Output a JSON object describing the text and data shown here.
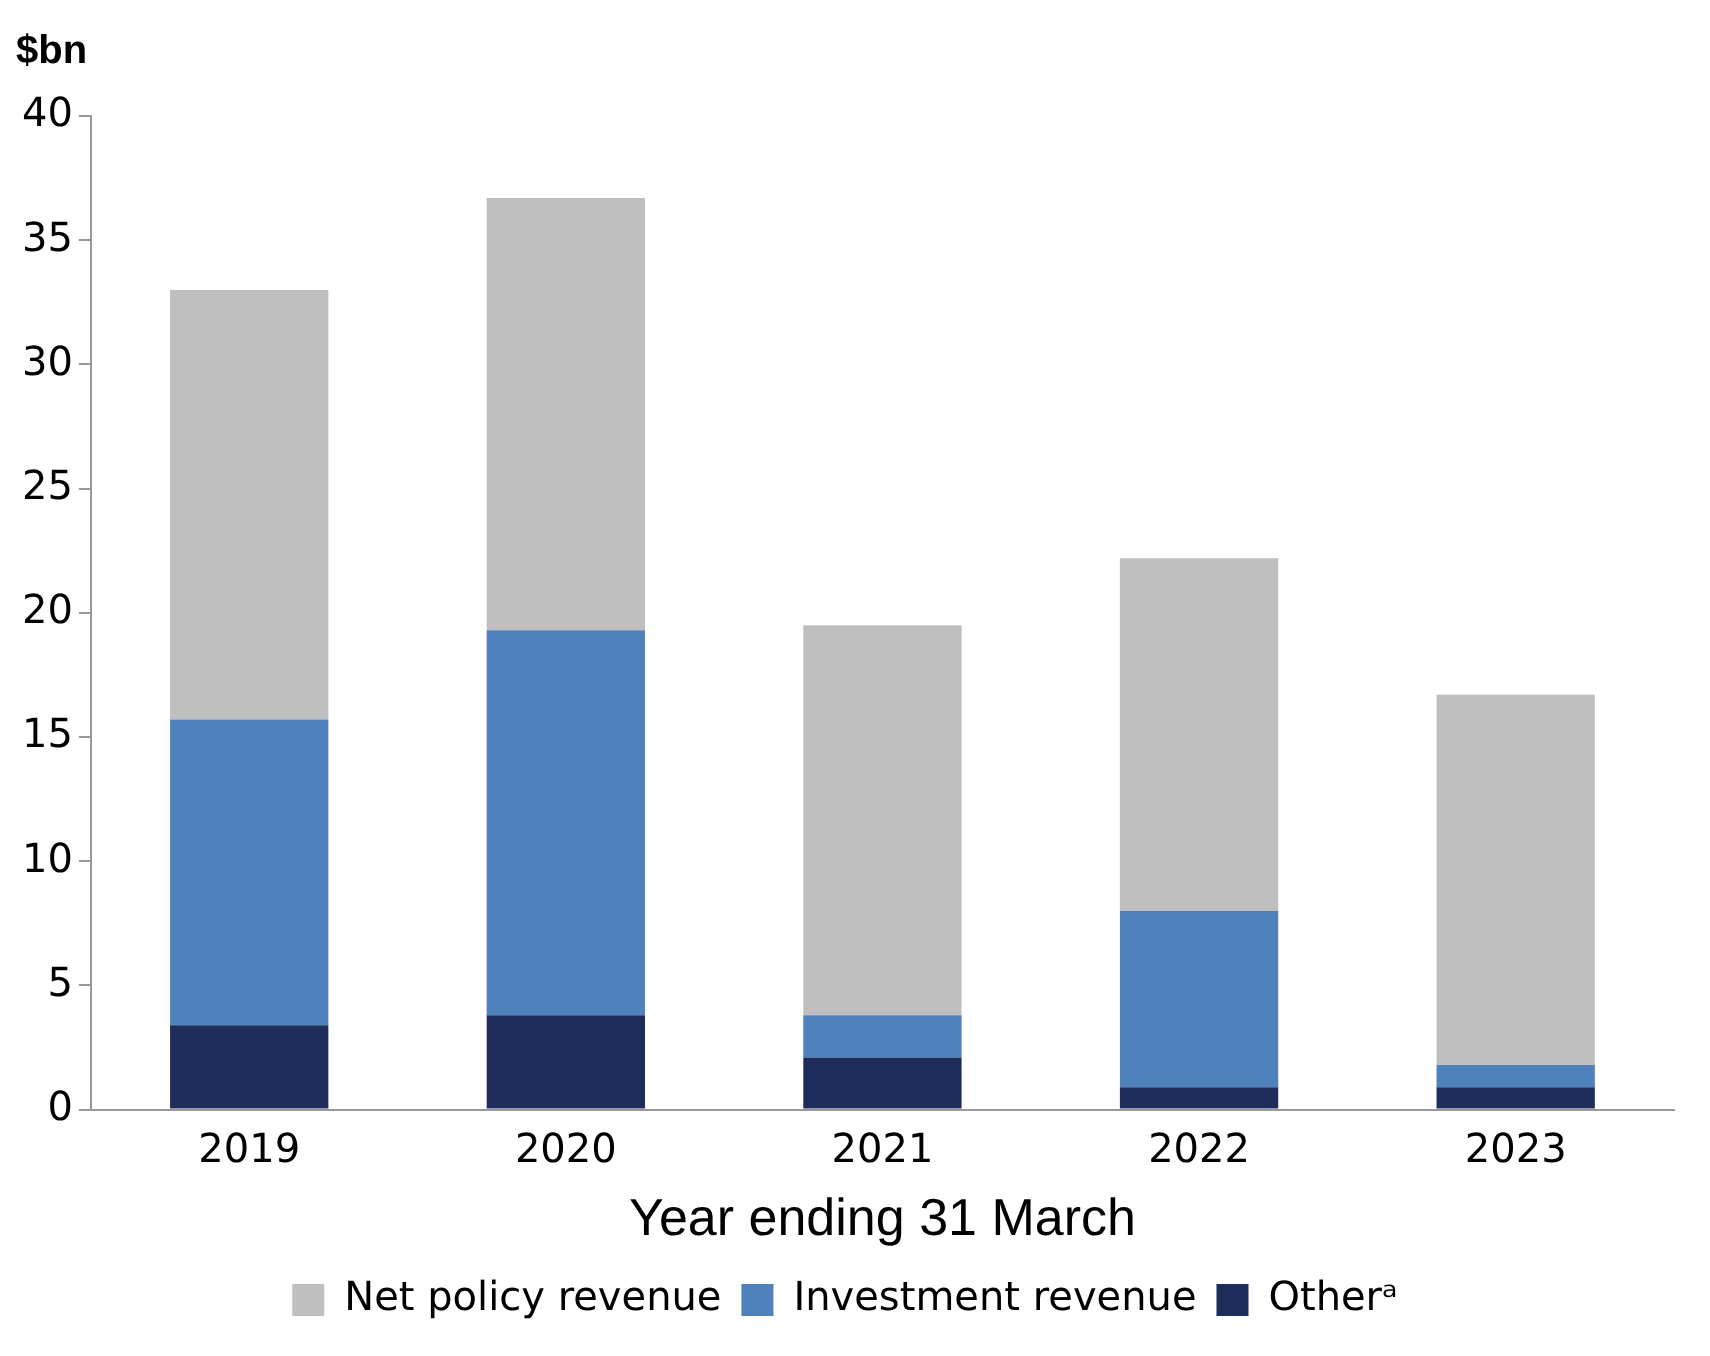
{
  "chart_data": {
    "type": "bar",
    "stacked": true,
    "ylabel": "$bn",
    "xlabel": "Year ending 31 March",
    "categories": [
      "2019",
      "2020",
      "2021",
      "2022",
      "2023"
    ],
    "series": [
      {
        "name": "Otherᵃ",
        "color": "#1f2d5c",
        "values": [
          3.4,
          3.8,
          2.1,
          0.9,
          0.9
        ]
      },
      {
        "name": "Investment revenue",
        "color": "#4f81bd",
        "values": [
          12.3,
          15.5,
          1.7,
          7.1,
          0.9
        ]
      },
      {
        "name": "Net policy revenue",
        "color": "#bfbfbf",
        "values": [
          17.3,
          17.4,
          15.7,
          14.2,
          14.9
        ]
      }
    ],
    "ylim": [
      0,
      40
    ],
    "yticks": [
      0,
      5,
      10,
      15,
      20,
      25,
      30,
      35,
      40
    ],
    "grid": false,
    "legend": "bottom"
  }
}
